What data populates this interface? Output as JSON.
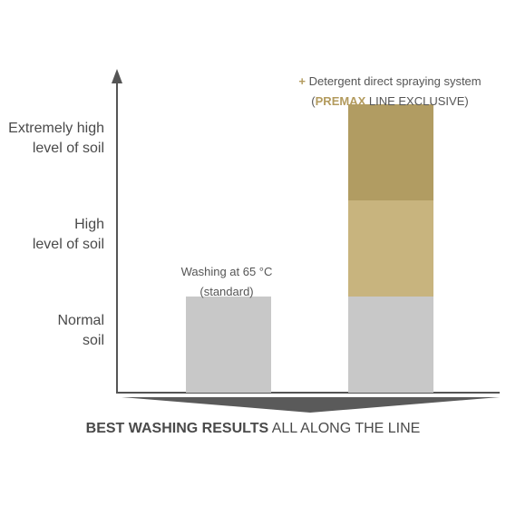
{
  "colors": {
    "axis": "#555555",
    "normal": "#c8c8c8",
    "high": "#c8b47e",
    "extreme": "#b19c62",
    "accent": "#b39b5e",
    "wedge": "#5a5a5a"
  },
  "chart_data": {
    "type": "bar",
    "stacked": true,
    "grid": false,
    "y_categories": [
      "Extremely high\nlevel of soil",
      "High\nlevel of soil",
      "Normal\nsoil"
    ],
    "ylim": [
      0,
      3
    ],
    "bars": [
      {
        "segments": [
          {
            "level": "normal",
            "value": 1
          }
        ]
      },
      {
        "segments": [
          {
            "level": "normal",
            "value": 1
          },
          {
            "level": "high",
            "value": 1
          },
          {
            "level": "extreme",
            "value": 1
          }
        ]
      }
    ],
    "annotations": {
      "bar1": {
        "line1": "Washing at 65 °C",
        "line2": "(standard)"
      },
      "bar2": {
        "plus": "+",
        "line1": "Detergent direct spraying system",
        "open": "(",
        "brand": "PREMAX",
        "rest": " LINE EXCLUSIVE)"
      }
    },
    "xlabel_bold": "BEST WASHING RESULTS",
    "xlabel_rest": " ALL ALONG THE LINE"
  }
}
